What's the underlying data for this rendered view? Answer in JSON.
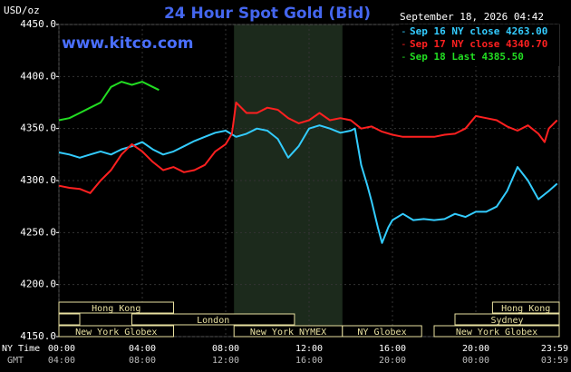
{
  "chart_data": {
    "type": "line",
    "title": "24 Hour Spot Gold (Bid)",
    "subtitle": "September 18, 2026 04:42",
    "site": "www.kitco.com",
    "ylabel": "USD/oz",
    "xlabel": "NY Time",
    "x2label": "GMT",
    "xlim": [
      0,
      24
    ],
    "ylim": [
      4150,
      4450
    ],
    "yticks": [
      {
        "value": 4150,
        "label": "4150.0"
      },
      {
        "value": 4200,
        "label": "4200.0"
      },
      {
        "value": 4250,
        "label": "4250.0"
      },
      {
        "value": 4300,
        "label": "4300.0"
      },
      {
        "value": 4350,
        "label": "4350.0"
      },
      {
        "value": 4400,
        "label": "4400.0"
      },
      {
        "value": 4450,
        "label": "4450.0"
      }
    ],
    "xticks": [
      {
        "value": 0,
        "label": "00:00"
      },
      {
        "value": 4,
        "label": "04:00"
      },
      {
        "value": 8,
        "label": "08:00"
      },
      {
        "value": 12,
        "label": "12:00"
      },
      {
        "value": 16,
        "label": "16:00"
      },
      {
        "value": 20,
        "label": "20:00"
      },
      {
        "value": 23.98,
        "label": "23:59"
      }
    ],
    "x2ticks": [
      {
        "value": 0,
        "label": "04:00"
      },
      {
        "value": 4,
        "label": "08:00"
      },
      {
        "value": 8,
        "label": "12:00"
      },
      {
        "value": 12,
        "label": "16:00"
      },
      {
        "value": 16,
        "label": "20:00"
      },
      {
        "value": 20,
        "label": "00:00"
      },
      {
        "value": 23.98,
        "label": "03:59"
      }
    ],
    "grid": true,
    "legend": "top-right",
    "series": [
      {
        "name": "Sep 16 NY close 4263.00",
        "color": "#33ccff",
        "x": [
          0,
          0.5,
          1,
          1.5,
          2,
          2.5,
          3,
          3.5,
          4,
          4.5,
          5,
          5.5,
          6,
          6.5,
          7,
          7.5,
          8,
          8.5,
          9,
          9.5,
          10,
          10.5,
          11,
          11.5,
          12,
          12.5,
          13,
          13.5,
          14,
          14.2,
          14.5,
          14.8,
          15,
          15.3,
          15.5,
          15.8,
          16,
          16.5,
          17,
          17.5,
          18,
          18.5,
          19,
          19.5,
          20,
          20.5,
          21,
          21.5,
          22,
          22.5,
          23,
          23.5,
          23.9
        ],
        "values": [
          4327,
          4325,
          4322,
          4325,
          4328,
          4325,
          4330,
          4333,
          4337,
          4330,
          4325,
          4328,
          4333,
          4338,
          4342,
          4346,
          4348,
          4342,
          4345,
          4350,
          4348,
          4340,
          4322,
          4333,
          4350,
          4353,
          4350,
          4346,
          4348,
          4350,
          4315,
          4295,
          4280,
          4255,
          4240,
          4255,
          4262,
          4268,
          4262,
          4263,
          4262,
          4263,
          4268,
          4265,
          4270,
          4270,
          4275,
          4290,
          4313,
          4300,
          4282,
          4290,
          4297
        ]
      },
      {
        "name": "Sep 17 NY close 4340.70",
        "color": "#ff2020",
        "x": [
          0,
          0.5,
          1,
          1.5,
          2,
          2.5,
          3,
          3.5,
          4,
          4.5,
          5,
          5.5,
          6,
          6.5,
          7,
          7.5,
          8,
          8.3,
          8.5,
          9,
          9.5,
          10,
          10.5,
          11,
          11.5,
          12,
          12.5,
          13,
          13.5,
          14,
          14.5,
          15,
          15.5,
          16,
          16.5,
          17,
          17.5,
          18,
          18.5,
          19,
          19.5,
          20,
          20.5,
          21,
          21.5,
          22,
          22.5,
          23,
          23.3,
          23.5,
          23.9
        ],
        "values": [
          4295,
          4293,
          4292,
          4288,
          4300,
          4310,
          4325,
          4335,
          4328,
          4318,
          4310,
          4313,
          4308,
          4310,
          4315,
          4328,
          4335,
          4345,
          4375,
          4365,
          4365,
          4370,
          4368,
          4360,
          4355,
          4358,
          4365,
          4358,
          4360,
          4358,
          4350,
          4352,
          4347,
          4344,
          4342,
          4342,
          4342,
          4342,
          4344,
          4345,
          4350,
          4362,
          4360,
          4358,
          4352,
          4348,
          4353,
          4345,
          4337,
          4350,
          4358
        ]
      },
      {
        "name": "Sep 18 Last 4385.50",
        "color": "#22dd22",
        "x": [
          0,
          0.5,
          1,
          1.5,
          2,
          2.5,
          3,
          3.5,
          4,
          4.5,
          4.8
        ],
        "values": [
          4358,
          4360,
          4365,
          4370,
          4375,
          4390,
          4395,
          4392,
          4395,
          4390,
          4387
        ]
      }
    ],
    "sessions": [
      {
        "name": "Hong Kong",
        "row": 0,
        "start": 0,
        "end": 5.5
      },
      {
        "name": "Hong Kong",
        "row": 0,
        "start": 20.8,
        "end": 24
      },
      {
        "name": null,
        "row": 1,
        "start": 0,
        "end": 1
      },
      {
        "name": "London",
        "row": 1,
        "start": 3.5,
        "end": 11.3
      },
      {
        "name": "Sydney",
        "row": 1,
        "start": 19,
        "end": 24
      },
      {
        "name": "New York Globex",
        "row": 2,
        "start": 0,
        "end": 5.5
      },
      {
        "name": "New York NYMEX",
        "row": 2,
        "start": 8.4,
        "end": 13.6,
        "shaded": true
      },
      {
        "name": "NY Globex",
        "row": 2,
        "start": 13.6,
        "end": 17.4
      },
      {
        "name": "New York Globex",
        "row": 2,
        "start": 18,
        "end": 24
      }
    ]
  }
}
